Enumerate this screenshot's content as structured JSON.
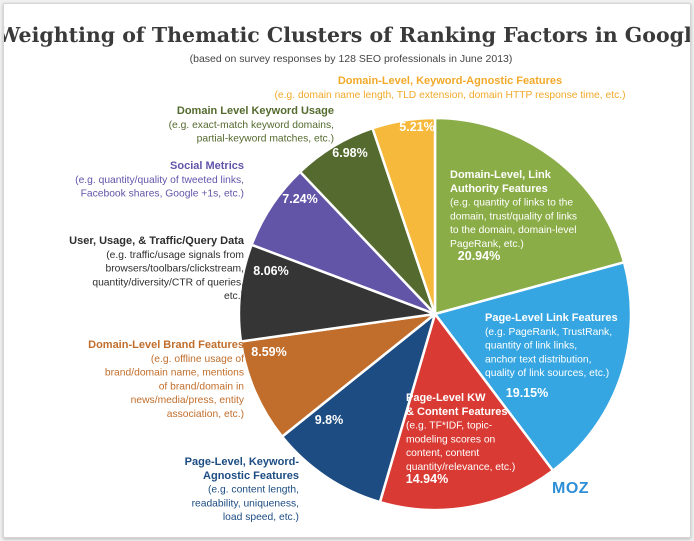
{
  "chart_data": {
    "type": "pie",
    "title": "Weighting of Thematic Clusters of Ranking Factors in Google",
    "subtitle": "(based on survey responses by 128 SEO professionals in June 2013)",
    "brand": "MOZ",
    "slices": [
      {
        "value": 20.94,
        "display": "20.94%",
        "color": "#8bad47",
        "text_color": "#ffffff",
        "label": [
          "Domain-Level, Link",
          "Authority Features"
        ],
        "desc": [
          "(e.g. quantity of links to the",
          "domain, trust/quality of links",
          "to the domain, domain-level",
          "PageRank, etc.)"
        ]
      },
      {
        "value": 19.15,
        "display": "19.15%",
        "color": "#36a6e2",
        "text_color": "#ffffff",
        "label": [
          "Page-Level Link Features"
        ],
        "desc": [
          "(e.g. PageRank, TrustRank,",
          "quantity of link links,",
          "anchor text distribution,",
          "quality of link sources, etc.)"
        ]
      },
      {
        "value": 14.94,
        "display": "14.94%",
        "color": "#d93a33",
        "text_color": "#ffffff",
        "label": [
          "Page-Level KW",
          "& Content Features"
        ],
        "desc": [
          "(e.g. TF*IDF, topic-",
          "modeling scores on",
          "content, content",
          "quantity/relevance, etc.)"
        ]
      },
      {
        "value": 9.8,
        "display": "9.8%",
        "color": "#1c4c82",
        "text_color": "#1c4c82",
        "label": [
          "Page-Level, Keyword-",
          "Agnostic Features"
        ],
        "desc": [
          "(e.g. content length,",
          "readability, uniqueness,",
          "load speed, etc.)"
        ]
      },
      {
        "value": 8.59,
        "display": "8.59%",
        "color": "#c16e2c",
        "text_color": "#c16e2c",
        "label": [
          "Domain-Level Brand Features"
        ],
        "desc": [
          "(e.g. offline usage of",
          "brand/domain name, mentions",
          "of brand/domain in",
          "news/media/press, entity",
          "association, etc.)"
        ]
      },
      {
        "value": 8.06,
        "display": "8.06%",
        "color": "#353535",
        "text_color": "#2e2e2e",
        "label": [
          "User, Usage, & Traffic/Query Data"
        ],
        "desc": [
          "(e.g. traffic/usage signals from",
          "browsers/toolbars/clickstream,",
          "quantity/diversity/CTR of queries,",
          "etc.)"
        ]
      },
      {
        "value": 7.24,
        "display": "7.24%",
        "color": "#6255a8",
        "text_color": "#6255a8",
        "label": [
          "Social Metrics"
        ],
        "desc": [
          "(e.g. quantity/quality of tweeted links,",
          "Facebook shares, Google +1s, etc.)"
        ]
      },
      {
        "value": 6.98,
        "display": "6.98%",
        "color": "#546a2e",
        "text_color": "#546a2e",
        "label": [
          "Domain Level Keyword Usage"
        ],
        "desc": [
          "(e.g. exact-match keyword domains,",
          "partial-keyword matches, etc.)"
        ]
      },
      {
        "value": 5.21,
        "display": "5.21%",
        "color": "#f7b93b",
        "text_color": "#f2a92a",
        "label": [
          "Domain-Level, Keyword-Agnostic Features"
        ],
        "desc": [
          "(e.g. domain name length, TLD extension, domain HTTP response time, etc.)"
        ]
      }
    ]
  }
}
